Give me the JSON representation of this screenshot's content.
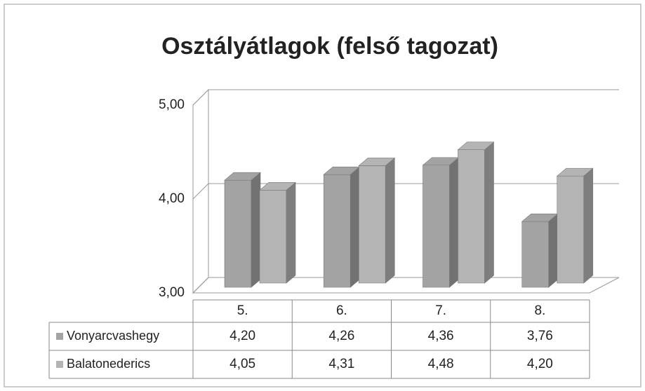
{
  "chart_data": {
    "type": "bar3d",
    "title": "Osztályátlagok (felső tagozat)",
    "categories": [
      "5.",
      "6.",
      "7.",
      "8."
    ],
    "series": [
      {
        "name": "Vonyarcvashegy",
        "color": "#a3a3a3",
        "values": [
          4.2,
          4.26,
          4.36,
          3.76
        ],
        "value_labels": [
          "4,20",
          "4,26",
          "4,36",
          "3,76"
        ]
      },
      {
        "name": "Balatonederics",
        "color": "#b4b4b4",
        "values": [
          4.05,
          4.31,
          4.48,
          4.2
        ],
        "value_labels": [
          "4,05",
          "4,31",
          "4,48",
          "4,20"
        ]
      }
    ],
    "ylim": [
      3,
      5
    ],
    "yticks": [
      {
        "value": 3,
        "label": "3,00"
      },
      {
        "value": 4,
        "label": "4,00"
      },
      {
        "value": 5,
        "label": "5,00"
      }
    ],
    "grid": true
  }
}
